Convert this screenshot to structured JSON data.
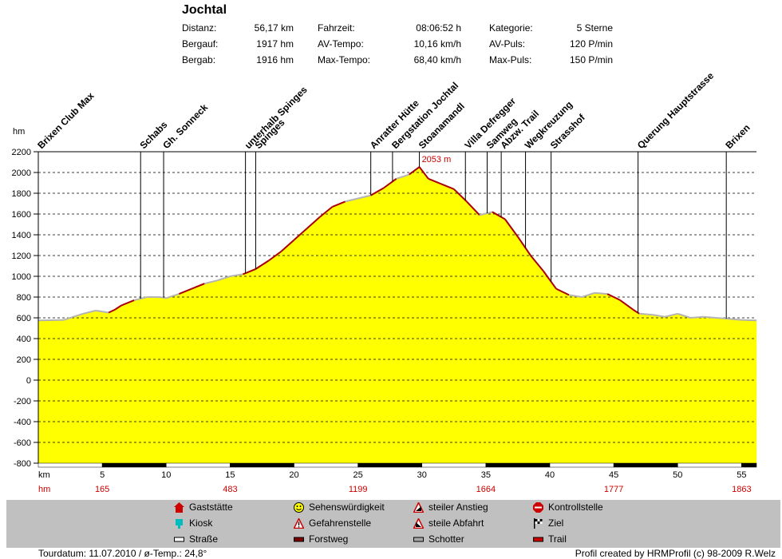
{
  "title": "Jochtal",
  "stats": [
    {
      "label": "Distanz:",
      "value": "56,17 km",
      "label2": "Fahrzeit:",
      "value2": "08:06:52 h",
      "label3": "Kategorie:",
      "value3": "5 Sterne"
    },
    {
      "label": "Bergauf:",
      "value": "1917 hm",
      "label2": "AV-Tempo:",
      "value2": "10,16 km/h",
      "label3": "AV-Puls:",
      "value3": "120 P/min"
    },
    {
      "label": "Bergab:",
      "value": "1916 hm",
      "label2": "Max-Tempo:",
      "value2": "68,40 km/h",
      "label3": "Max-Puls:",
      "value3": "150 P/min"
    }
  ],
  "chart_data": {
    "type": "area",
    "ylabel": "hm",
    "xlabel": "km",
    "ylim": [
      -800,
      2200
    ],
    "xlim": [
      0,
      56.17
    ],
    "yticks": [
      2200,
      2000,
      1800,
      1600,
      1400,
      1200,
      1000,
      800,
      600,
      400,
      200,
      0,
      -200,
      -400,
      -600,
      -800
    ],
    "xticks": [
      5,
      10,
      15,
      20,
      25,
      30,
      35,
      40,
      45,
      50,
      55
    ],
    "grid": true,
    "profile": [
      [
        0,
        575
      ],
      [
        2,
        580
      ],
      [
        3.5,
        640
      ],
      [
        4.5,
        670
      ],
      [
        5.5,
        650
      ],
      [
        6,
        680
      ],
      [
        6.5,
        720
      ],
      [
        7.5,
        770
      ],
      [
        8.5,
        800
      ],
      [
        9.5,
        800
      ],
      [
        10,
        790
      ],
      [
        11,
        830
      ],
      [
        12,
        880
      ],
      [
        13,
        930
      ],
      [
        14,
        960
      ],
      [
        15,
        1000
      ],
      [
        16,
        1020
      ],
      [
        17,
        1070
      ],
      [
        18,
        1150
      ],
      [
        19,
        1240
      ],
      [
        20,
        1350
      ],
      [
        21,
        1460
      ],
      [
        22,
        1570
      ],
      [
        23,
        1670
      ],
      [
        24,
        1720
      ],
      [
        25,
        1750
      ],
      [
        26,
        1780
      ],
      [
        27,
        1850
      ],
      [
        28,
        1940
      ],
      [
        29,
        1980
      ],
      [
        29.8,
        2053
      ],
      [
        30.5,
        1940
      ],
      [
        31.5,
        1890
      ],
      [
        32.5,
        1840
      ],
      [
        33.5,
        1720
      ],
      [
        34.5,
        1590
      ],
      [
        35.5,
        1620
      ],
      [
        36.5,
        1550
      ],
      [
        37.5,
        1380
      ],
      [
        38.5,
        1200
      ],
      [
        39.5,
        1050
      ],
      [
        40.5,
        880
      ],
      [
        41.5,
        820
      ],
      [
        42.5,
        800
      ],
      [
        43.5,
        840
      ],
      [
        44.5,
        830
      ],
      [
        45.5,
        770
      ],
      [
        46.5,
        680
      ],
      [
        47,
        640
      ],
      [
        48,
        630
      ],
      [
        49,
        610
      ],
      [
        50,
        640
      ],
      [
        51,
        600
      ],
      [
        52,
        610
      ],
      [
        53,
        600
      ],
      [
        54,
        590
      ],
      [
        55,
        580
      ],
      [
        56.17,
        575
      ]
    ],
    "max_label": "2053 m",
    "max_point": [
      29.8,
      2053
    ],
    "waypoints": [
      {
        "name": "Brixen Club Max",
        "km": 0
      },
      {
        "name": "Schabs",
        "km": 8
      },
      {
        "name": "Gh. Sonneck",
        "km": 9.8
      },
      {
        "name": "unterhalb Spinges",
        "km": 16.2
      },
      {
        "name": "Spinges",
        "km": 17
      },
      {
        "name": "Anratter Hütte",
        "km": 26
      },
      {
        "name": "Bergstation Jochtal",
        "km": 27.7
      },
      {
        "name": "Stoanamandl",
        "km": 29.8
      },
      {
        "name": "Villa Defregger",
        "km": 33.4
      },
      {
        "name": "Samweg",
        "km": 35.1
      },
      {
        "name": "Abzw. Trail",
        "km": 36.2
      },
      {
        "name": "Wegkreuzung",
        "km": 38.1
      },
      {
        "name": "Strasshof",
        "km": 40.1
      },
      {
        "name": "Querung Hauptstrasse",
        "km": 46.9
      },
      {
        "name": "Brixen",
        "km": 53.8
      }
    ],
    "hm_cumulative": [
      {
        "km": 5,
        "value": "165"
      },
      {
        "km": 15,
        "value": "483"
      },
      {
        "km": 25,
        "value": "1199"
      },
      {
        "km": 35,
        "value": "1664"
      },
      {
        "km": 45,
        "value": "1777"
      },
      {
        "km": 55,
        "value": "1863"
      }
    ],
    "hm_label": "hm",
    "colors": {
      "fill": "#ffff00",
      "line_up": "#aa0000",
      "line_flat": "#b4b4b4",
      "grid": "#000000",
      "hm": "#cc0000"
    }
  },
  "legend": [
    {
      "label": "Gaststätte",
      "icon": "house-icon"
    },
    {
      "label": "Sehenswürdigkeit",
      "icon": "smiley-icon"
    },
    {
      "label": "steiler Anstieg",
      "icon": "steep-up-icon"
    },
    {
      "label": "Kontrollstelle",
      "icon": "stop-icon"
    },
    {
      "label": "Kiosk",
      "icon": "kiosk-icon"
    },
    {
      "label": "Gefahrenstelle",
      "icon": "warning-icon"
    },
    {
      "label": "steile Abfahrt",
      "icon": "steep-down-icon"
    },
    {
      "label": "Ziel",
      "icon": "flag-icon"
    },
    {
      "label": "Straße",
      "icon": "road-icon"
    },
    {
      "label": "Forstweg",
      "icon": "forest-road-icon"
    },
    {
      "label": "Schotter",
      "icon": "gravel-icon"
    },
    {
      "label": "Trail",
      "icon": "trail-icon"
    }
  ],
  "footer": {
    "left": "Tourdatum: 11.07.2010  /  ø-Temp.: 24,8°",
    "right": "Profil created by HRMProfil (c) 98-2009 R.Welz"
  }
}
